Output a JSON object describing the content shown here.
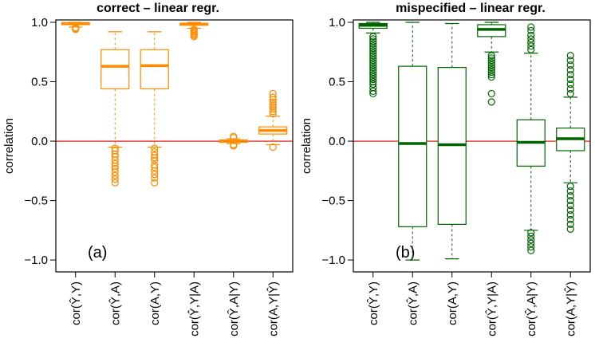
{
  "colors": {
    "panel_a": "#ff8c00",
    "panel_b": "#006400",
    "zero_line": "#e60000"
  },
  "chart_data": [
    {
      "type": "box",
      "title": "correct – linear regr.",
      "panel_tag": "(a)",
      "color": "#ff8c00",
      "ylabel": "correlation",
      "ylim": [
        -1.1,
        1.02
      ],
      "yticks": [
        "−1.0",
        "−0.5",
        "0.0",
        "0.5",
        "1.0"
      ],
      "ytick_values": [
        -1.0,
        -0.5,
        0.0,
        0.5,
        1.0
      ],
      "reference_line": 0.0,
      "categories": [
        "cor(Ŷ,Y)",
        "cor(Ŷ,A)",
        "cor(A,Y)",
        "cor(Ŷ,Y|A)",
        "cor(Ŷ,A|Y)",
        "cor(A,Y|Ŷ)"
      ],
      "boxes": [
        {
          "whisker_low": 0.96,
          "q1": 0.98,
          "median": 0.99,
          "q3": 0.995,
          "whisker_high": 1.0,
          "outliers": [
            0.95,
            0.95,
            0.94,
            0.955,
            0.945
          ]
        },
        {
          "whisker_low": -0.05,
          "q1": 0.44,
          "median": 0.63,
          "q3": 0.77,
          "whisker_high": 0.92,
          "outliers": [
            -0.06,
            -0.08,
            -0.11,
            -0.13,
            -0.16,
            -0.19,
            -0.21,
            -0.23,
            -0.26,
            -0.29,
            -0.32,
            -0.35
          ]
        },
        {
          "whisker_low": -0.05,
          "q1": 0.44,
          "median": 0.635,
          "q3": 0.77,
          "whisker_high": 0.92,
          "outliers": [
            -0.06,
            -0.09,
            -0.12,
            -0.14,
            -0.16,
            -0.2,
            -0.22,
            -0.25,
            -0.28,
            -0.31,
            -0.35
          ]
        },
        {
          "whisker_low": 0.95,
          "q1": 0.975,
          "median": 0.985,
          "q3": 0.99,
          "whisker_high": 1.0,
          "outliers": [
            0.94,
            0.93,
            0.92,
            0.91,
            0.9,
            0.89,
            0.88
          ]
        },
        {
          "whisker_low": -0.02,
          "q1": -0.01,
          "median": 0.0,
          "q3": 0.01,
          "whisker_high": 0.02,
          "outliers": [
            0.04,
            0.03,
            -0.03,
            -0.04
          ]
        },
        {
          "whisker_low": -0.03,
          "q1": 0.06,
          "median": 0.09,
          "q3": 0.12,
          "whisker_high": 0.21,
          "outliers": [
            -0.05,
            0.23,
            0.25,
            0.27,
            0.29,
            0.31,
            0.33,
            0.35,
            0.37,
            0.4
          ]
        }
      ]
    },
    {
      "type": "box",
      "title": "mispecified – linear regr.",
      "panel_tag": "(b)",
      "color": "#006400",
      "ylabel": "correlation",
      "ylim": [
        -1.1,
        1.02
      ],
      "yticks": [
        "−1.0",
        "−0.5",
        "0.0",
        "0.5",
        "1.0"
      ],
      "ytick_values": [
        -1.0,
        -0.5,
        0.0,
        0.5,
        1.0
      ],
      "reference_line": 0.0,
      "categories": [
        "cor(Ŷ,Y)",
        "cor(Ŷ,A)",
        "cor(A,Y)",
        "cor(Ŷ,Y|A)",
        "cor(Ŷ,A|Y)",
        "cor(A,Y|Ŷ)"
      ],
      "boxes": [
        {
          "whisker_low": 0.91,
          "q1": 0.95,
          "median": 0.975,
          "q3": 0.99,
          "whisker_high": 1.0,
          "outliers": [
            0.88,
            0.86,
            0.84,
            0.82,
            0.8,
            0.78,
            0.76,
            0.74,
            0.72,
            0.7,
            0.68,
            0.66,
            0.64,
            0.62,
            0.6,
            0.58,
            0.56,
            0.54,
            0.52,
            0.5,
            0.48,
            0.45,
            0.42,
            0.4
          ]
        },
        {
          "whisker_low": -1.0,
          "q1": -0.72,
          "median": -0.02,
          "q3": 0.63,
          "whisker_high": 1.0,
          "outliers": []
        },
        {
          "whisker_low": -0.99,
          "q1": -0.7,
          "median": -0.03,
          "q3": 0.62,
          "whisker_high": 0.99,
          "outliers": []
        },
        {
          "whisker_low": 0.75,
          "q1": 0.88,
          "median": 0.94,
          "q3": 0.98,
          "whisker_high": 1.0,
          "outliers": [
            0.72,
            0.7,
            0.68,
            0.66,
            0.64,
            0.62,
            0.6,
            0.58,
            0.56,
            0.54,
            0.4,
            0.33
          ]
        },
        {
          "whisker_low": -0.75,
          "q1": -0.21,
          "median": -0.01,
          "q3": 0.18,
          "whisker_high": 0.74,
          "outliers": [
            0.77,
            0.8,
            0.83,
            0.86,
            0.89,
            0.93,
            0.96,
            -0.77,
            -0.8,
            -0.83,
            -0.86,
            -0.89,
            -0.92
          ]
        },
        {
          "whisker_low": -0.35,
          "q1": -0.08,
          "median": 0.02,
          "q3": 0.11,
          "whisker_high": 0.37,
          "outliers": [
            0.4,
            0.44,
            0.48,
            0.52,
            0.56,
            0.6,
            0.64,
            0.68,
            0.72,
            -0.38,
            -0.42,
            -0.46,
            -0.5,
            -0.54,
            -0.58,
            -0.62,
            -0.66,
            -0.7,
            -0.74
          ]
        }
      ]
    }
  ]
}
